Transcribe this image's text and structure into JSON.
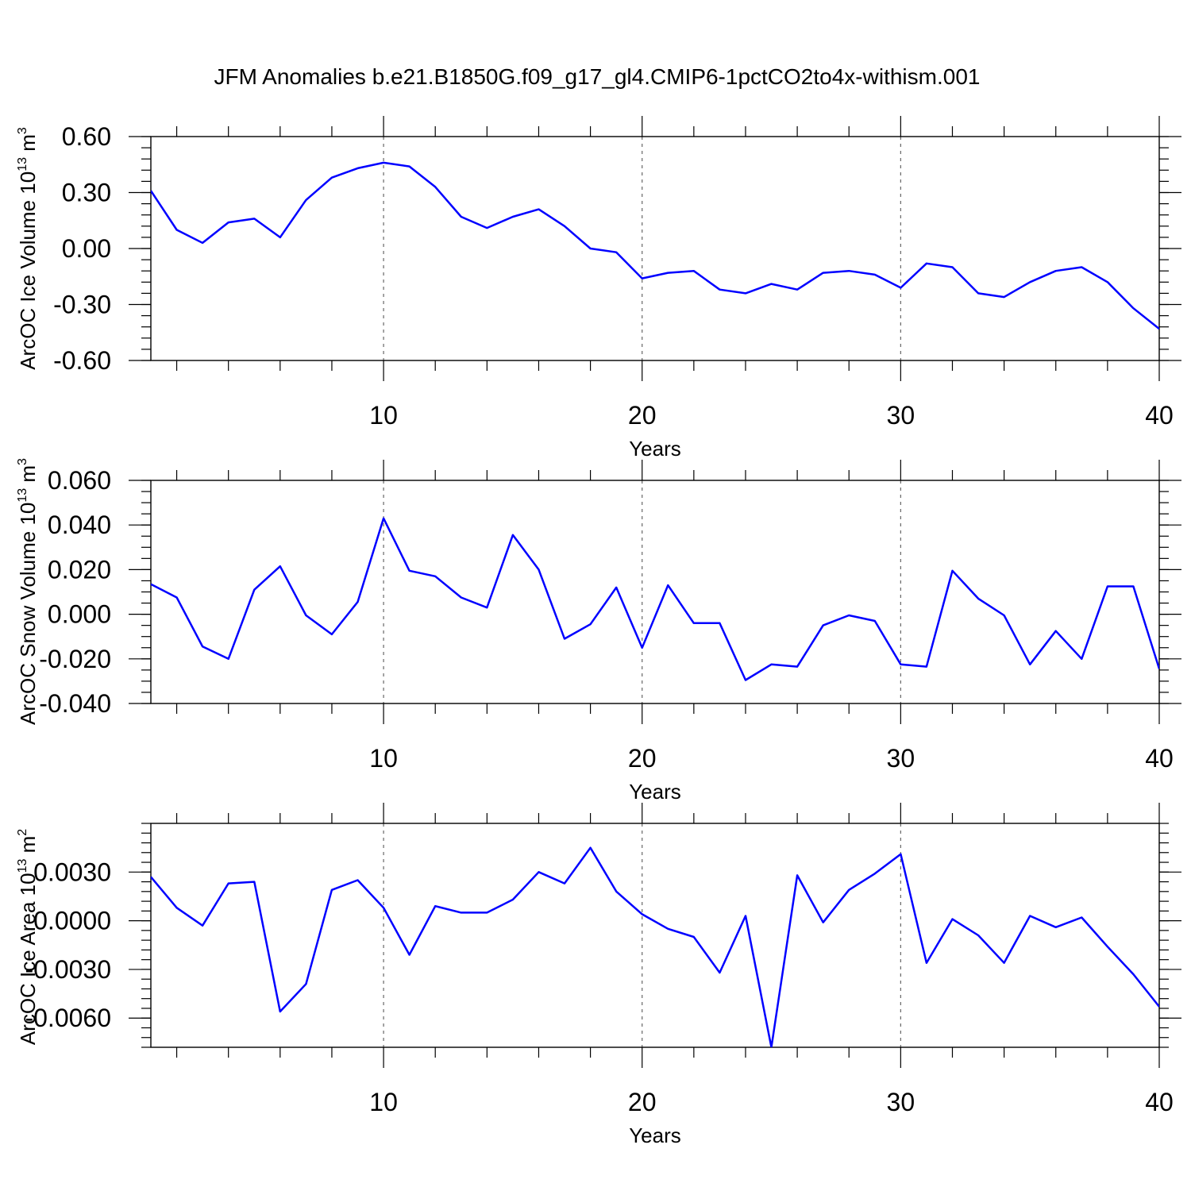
{
  "title": "JFM Anomalies b.e21.B1850G.f09_g17_gl4.CMIP6-1pctCO2to4x-withism.001",
  "colors": {
    "line": "#0000ff",
    "axis": "#000000",
    "grid": "#666666"
  },
  "chart_data": [
    {
      "type": "line",
      "ylabel": "ArcOC Ice Volume 10",
      "ylabel_exp": "13",
      "ylabel_unit": " m",
      "ylabel_unit_exp": "3",
      "xlabel": "Years",
      "xlim": [
        1,
        40
      ],
      "ylim": [
        -0.6,
        0.6
      ],
      "x_ticks": [
        "10",
        "20",
        "30",
        "40"
      ],
      "y_ticks": [
        "0.60",
        "0.30",
        "0.00",
        "-0.30",
        "-0.60"
      ],
      "y_minor_step": 0.06,
      "grid_x": [
        10,
        20,
        30
      ],
      "x": [
        1,
        2,
        3,
        4,
        5,
        6,
        7,
        8,
        9,
        10,
        11,
        12,
        13,
        14,
        15,
        16,
        17,
        18,
        19,
        20,
        21,
        22,
        23,
        24,
        25,
        26,
        27,
        28,
        29,
        30,
        31,
        32,
        33,
        34,
        35,
        36,
        37,
        38,
        39,
        40
      ],
      "values": [
        0.31,
        0.1,
        0.03,
        0.14,
        0.16,
        0.06,
        0.26,
        0.38,
        0.43,
        0.46,
        0.44,
        0.33,
        0.17,
        0.11,
        0.17,
        0.21,
        0.12,
        0.0,
        -0.02,
        -0.16,
        -0.13,
        -0.12,
        -0.22,
        -0.24,
        -0.19,
        -0.22,
        -0.13,
        -0.12,
        -0.14,
        -0.21,
        -0.08,
        -0.1,
        -0.24,
        -0.26,
        -0.18,
        -0.12,
        -0.1,
        -0.18,
        -0.32,
        -0.43
      ]
    },
    {
      "type": "line",
      "ylabel": "ArcOC Snow Volume 10",
      "ylabel_exp": "13",
      "ylabel_unit": " m",
      "ylabel_unit_exp": "3",
      "xlabel": "Years",
      "xlim": [
        1,
        40
      ],
      "ylim": [
        -0.04,
        0.06
      ],
      "x_ticks": [
        "10",
        "20",
        "30",
        "40"
      ],
      "y_ticks": [
        "0.060",
        "0.040",
        "0.020",
        "0.000",
        "-0.020",
        "-0.040"
      ],
      "y_minor_step": 0.005,
      "grid_x": [
        10,
        20,
        30
      ],
      "x": [
        1,
        2,
        3,
        4,
        5,
        6,
        7,
        8,
        9,
        10,
        11,
        12,
        13,
        14,
        15,
        16,
        17,
        18,
        19,
        20,
        21,
        22,
        23,
        24,
        25,
        26,
        27,
        28,
        29,
        30,
        31,
        32,
        33,
        34,
        35,
        36,
        37,
        38,
        39,
        40
      ],
      "values": [
        0.0135,
        0.0075,
        -0.0145,
        -0.02,
        0.011,
        0.0215,
        -0.0005,
        -0.009,
        0.0055,
        0.043,
        0.0195,
        0.017,
        0.0075,
        0.003,
        0.0355,
        0.02,
        -0.011,
        -0.0045,
        0.012,
        -0.015,
        0.013,
        -0.004,
        -0.004,
        -0.0295,
        -0.0225,
        -0.0235,
        -0.005,
        -0.0005,
        -0.003,
        -0.0225,
        -0.0235,
        0.0195,
        0.007,
        -0.0005,
        -0.0225,
        -0.0075,
        -0.02,
        0.0125,
        0.0125,
        -0.0245
      ]
    },
    {
      "type": "line",
      "ylabel": "ArcOC Ice Area 10",
      "ylabel_exp": "13",
      "ylabel_unit": " m",
      "ylabel_unit_exp": "2",
      "xlabel": "Years",
      "xlim": [
        1,
        40
      ],
      "ylim": [
        -0.0078,
        0.006
      ],
      "x_ticks": [
        "10",
        "20",
        "30",
        "40"
      ],
      "y_ticks": [
        "0.0030",
        "0.0000",
        "-0.0030",
        "-0.0060"
      ],
      "y_minor_step": 0.0006,
      "grid_x": [
        10,
        20,
        30
      ],
      "x": [
        1,
        2,
        3,
        4,
        5,
        6,
        7,
        8,
        9,
        10,
        11,
        12,
        13,
        14,
        15,
        16,
        17,
        18,
        19,
        20,
        21,
        22,
        23,
        24,
        25,
        26,
        27,
        28,
        29,
        30,
        31,
        32,
        33,
        34,
        35,
        36,
        37,
        38,
        39,
        40
      ],
      "values": [
        0.0027,
        0.0008,
        -0.0003,
        0.0023,
        0.0024,
        -0.0056,
        -0.0039,
        0.0019,
        0.0025,
        0.0008,
        -0.0021,
        0.0009,
        0.0005,
        0.0005,
        0.0013,
        0.003,
        0.0023,
        0.0045,
        0.0018,
        0.0004,
        -0.0005,
        -0.001,
        -0.0032,
        0.0003,
        -0.0078,
        0.0028,
        -0.0001,
        0.0019,
        0.0029,
        0.0041,
        -0.0026,
        0.0001,
        -0.0009,
        -0.0026,
        0.0003,
        -0.0004,
        0.0002,
        -0.0016,
        -0.0033,
        -0.0053
      ]
    }
  ]
}
